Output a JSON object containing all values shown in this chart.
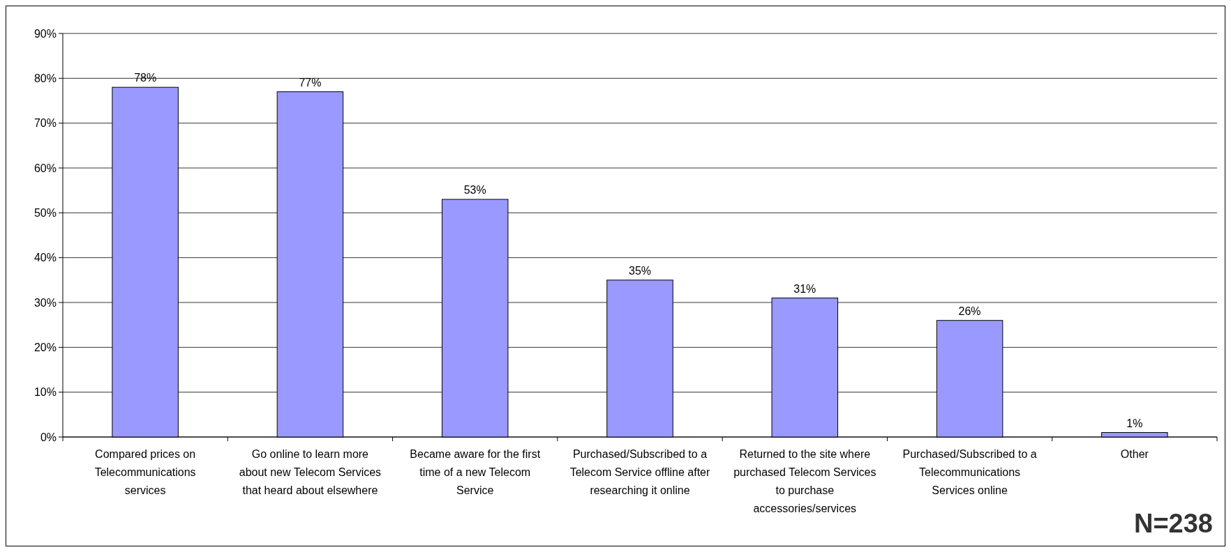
{
  "chart_data": {
    "type": "bar",
    "categories": [
      "Compared prices on Telecommunications services",
      "Go online to learn more about new Telecom Services that  heard about elsewhere",
      "Became aware for the first time of a new Telecom Service",
      "Purchased/Subscribed to a Telecom Service offline after researching it online",
      "Returned to the site where purchased Telecom Services to purchase accessories/services",
      "Purchased/Subscribed to a Telecommunications Services online",
      "Other"
    ],
    "values": [
      78,
      77,
      53,
      35,
      31,
      26,
      1
    ],
    "value_labels": [
      "78%",
      "77%",
      "53%",
      "35%",
      "31%",
      "26%",
      "1%"
    ],
    "color": "#9999ff",
    "ylim": [
      0,
      90
    ],
    "yticks": [
      {
        "value": 0,
        "label": "0%"
      },
      {
        "value": 10,
        "label": "10%"
      },
      {
        "value": 20,
        "label": "20%"
      },
      {
        "value": 30,
        "label": "30%"
      },
      {
        "value": 40,
        "label": "40%"
      },
      {
        "value": 50,
        "label": "50%"
      },
      {
        "value": 60,
        "label": "60%"
      },
      {
        "value": 70,
        "label": "70%"
      },
      {
        "value": 80,
        "label": "80%"
      },
      {
        "value": 90,
        "label": "90%"
      }
    ],
    "grid": "y",
    "annotations": [
      "N=238"
    ]
  }
}
